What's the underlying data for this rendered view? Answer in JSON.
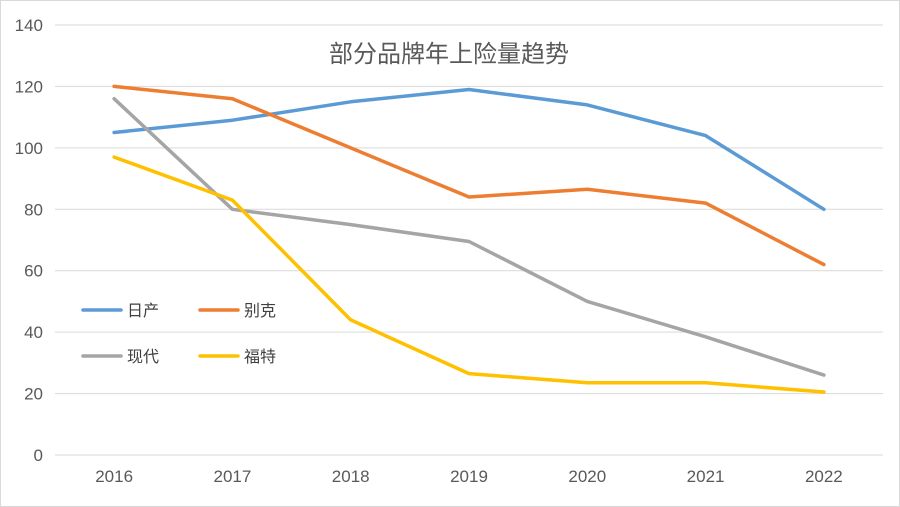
{
  "chart_data": {
    "type": "line",
    "title": "部分品牌年上险量趋势",
    "xlabel": "",
    "ylabel": "",
    "categories": [
      "2016",
      "2017",
      "2018",
      "2019",
      "2020",
      "2021",
      "2022"
    ],
    "ylim": [
      0,
      140
    ],
    "yticks": [
      "0",
      "20",
      "40",
      "60",
      "80",
      "100",
      "120",
      "140"
    ],
    "grid": true,
    "legend_position": "center-left",
    "series": [
      {
        "name": "日产",
        "color": "#5B9BD5",
        "values": [
          105,
          109,
          115,
          119,
          114,
          104,
          80
        ]
      },
      {
        "name": "别克",
        "color": "#ED7D31",
        "values": [
          120,
          116,
          100,
          84,
          86.5,
          82,
          62
        ]
      },
      {
        "name": "现代",
        "color": "#A5A5A5",
        "values": [
          116,
          80,
          75,
          69.5,
          50,
          38.5,
          26
        ]
      },
      {
        "name": "福特",
        "color": "#FFC000",
        "values": [
          97,
          83,
          44,
          26.5,
          23.5,
          23.5,
          20.5
        ]
      }
    ]
  }
}
